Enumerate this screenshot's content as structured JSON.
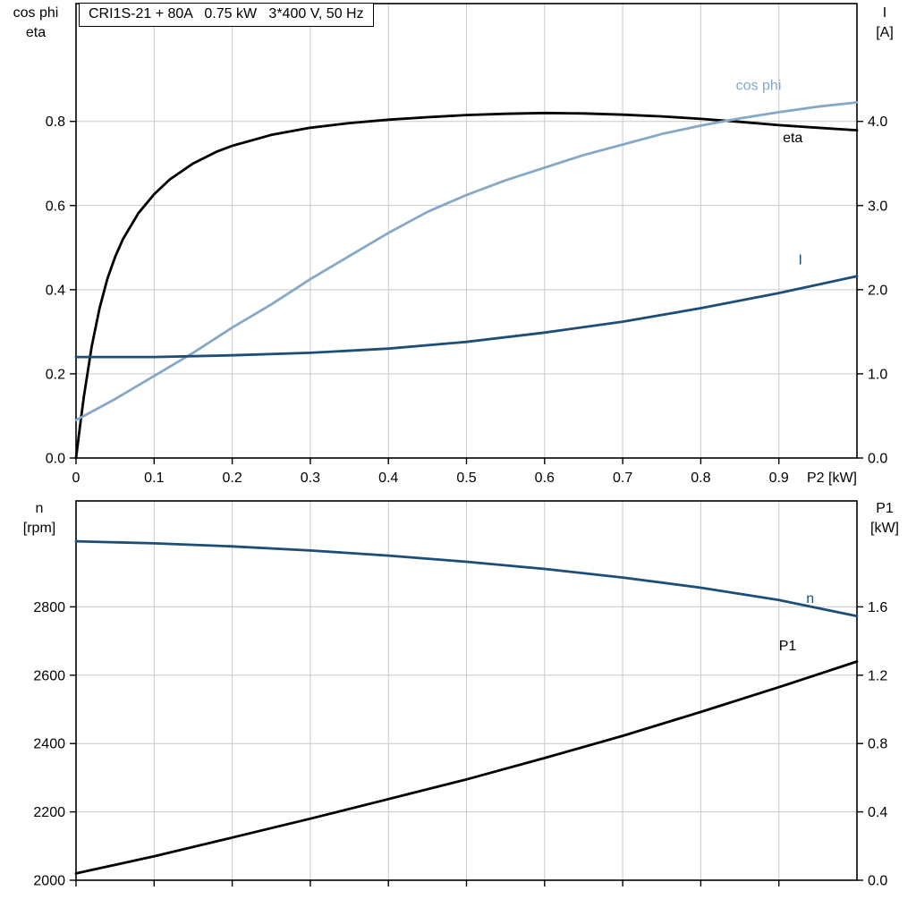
{
  "page": {
    "background": "#ffffff"
  },
  "colors": {
    "axis": "#000000",
    "grid": "#c9c9c9",
    "text": "#000000",
    "cos_phi_blue": "#85a8c7",
    "dark_blue": "#1d4e77",
    "curve_black": "#000000"
  },
  "chart_data": [
    {
      "type": "line",
      "title": "CRI1S-21 + 80A   0.75 kW   3*400 V, 50 Hz",
      "xlabel": "P2 [kW]",
      "ylabel_left_lines": [
        "cos phi",
        "eta"
      ],
      "ylabel_right_lines": [
        "I",
        "[A]"
      ],
      "xlim": [
        0,
        1.0
      ],
      "x_ticks": [
        0,
        0.1,
        0.2,
        0.3,
        0.4,
        0.5,
        0.6,
        0.7,
        0.8,
        0.9
      ],
      "x_tick_labels": [
        "0",
        "0.1",
        "0.2",
        "0.3",
        "0.4",
        "0.5",
        "0.6",
        "0.7",
        "0.8",
        "0.9"
      ],
      "ylim_left": [
        0,
        1.08
      ],
      "left_ticks": {
        "values": [
          0,
          0.2,
          0.4,
          0.6,
          0.8
        ],
        "labels": [
          "0.0",
          "0.2",
          "0.4",
          "0.6",
          "0.8"
        ]
      },
      "ylim_right": [
        0,
        5.4
      ],
      "right_ticks": {
        "values": [
          0,
          1,
          2,
          3,
          4
        ],
        "labels": [
          "0.0",
          "1.0",
          "2.0",
          "3.0",
          "4.0"
        ]
      },
      "grid": true,
      "legend_position": "inline-labels",
      "series": [
        {
          "name": "eta",
          "label": "eta",
          "axis": "left",
          "color": "#000000",
          "label_pos": [
            0.905,
            0.75
          ],
          "x": [
            0,
            0.005,
            0.01,
            0.02,
            0.03,
            0.04,
            0.05,
            0.06,
            0.08,
            0.1,
            0.12,
            0.15,
            0.18,
            0.2,
            0.25,
            0.3,
            0.35,
            0.4,
            0.45,
            0.5,
            0.55,
            0.6,
            0.65,
            0.7,
            0.75,
            0.8,
            0.85,
            0.9,
            0.95,
            1.0
          ],
          "y": [
            0,
            0.075,
            0.145,
            0.265,
            0.355,
            0.425,
            0.478,
            0.52,
            0.582,
            0.627,
            0.662,
            0.7,
            0.728,
            0.742,
            0.768,
            0.785,
            0.796,
            0.804,
            0.81,
            0.815,
            0.818,
            0.82,
            0.819,
            0.816,
            0.812,
            0.806,
            0.799,
            0.791,
            0.785,
            0.779
          ]
        },
        {
          "name": "cos phi",
          "label": "cos phi",
          "axis": "left",
          "color": "#85a8c7",
          "label_pos": [
            0.845,
            0.875
          ],
          "x": [
            0,
            0.05,
            0.1,
            0.15,
            0.2,
            0.25,
            0.3,
            0.35,
            0.4,
            0.45,
            0.5,
            0.55,
            0.6,
            0.65,
            0.7,
            0.75,
            0.8,
            0.85,
            0.9,
            0.95,
            1.0
          ],
          "y": [
            0.09,
            0.14,
            0.195,
            0.25,
            0.31,
            0.365,
            0.425,
            0.48,
            0.535,
            0.585,
            0.625,
            0.66,
            0.69,
            0.72,
            0.745,
            0.77,
            0.79,
            0.807,
            0.822,
            0.835,
            0.845
          ]
        },
        {
          "name": "I",
          "label": "I",
          "axis": "right",
          "color": "#1d4e77",
          "label_pos": [
            0.925,
            2.3
          ],
          "x": [
            0,
            0.1,
            0.2,
            0.3,
            0.4,
            0.5,
            0.6,
            0.7,
            0.8,
            0.9,
            1.0
          ],
          "y": [
            1.2,
            1.2,
            1.22,
            1.25,
            1.3,
            1.38,
            1.49,
            1.62,
            1.78,
            1.96,
            2.16
          ]
        }
      ]
    },
    {
      "type": "line",
      "title": "",
      "xlabel": "",
      "ylabel_left_lines": [
        "n",
        "[rpm]"
      ],
      "ylabel_right_lines": [
        "P1",
        "[kW]"
      ],
      "xlim": [
        0,
        1.0
      ],
      "x_ticks": [
        0,
        0.1,
        0.2,
        0.3,
        0.4,
        0.5,
        0.6,
        0.7,
        0.8,
        0.9
      ],
      "x_tick_labels": [],
      "ylim_left": [
        2000,
        3110
      ],
      "left_ticks": {
        "values": [
          2000,
          2200,
          2400,
          2600,
          2800
        ],
        "labels": [
          "2000",
          "2200",
          "2400",
          "2600",
          "2800"
        ]
      },
      "ylim_right": [
        0,
        2.22
      ],
      "right_ticks": {
        "values": [
          0,
          0.4,
          0.8,
          1.2,
          1.6
        ],
        "labels": [
          "0.0",
          "0.4",
          "0.8",
          "1.2",
          "1.6"
        ]
      },
      "grid": true,
      "legend_position": "inline-labels",
      "series": [
        {
          "name": "n",
          "label": "n",
          "axis": "left",
          "color": "#1d4e77",
          "label_pos": [
            0.935,
            2812
          ],
          "x": [
            0,
            0.1,
            0.2,
            0.3,
            0.4,
            0.5,
            0.6,
            0.7,
            0.8,
            0.9,
            1.0
          ],
          "y": [
            2992,
            2986,
            2977,
            2965,
            2950,
            2932,
            2911,
            2886,
            2856,
            2820,
            2773
          ]
        },
        {
          "name": "P1",
          "label": "P1",
          "axis": "right",
          "color": "#000000",
          "label_pos": [
            0.9,
            1.345
          ],
          "x": [
            0,
            0.1,
            0.2,
            0.3,
            0.4,
            0.5,
            0.6,
            0.7,
            0.8,
            0.9,
            1.0
          ],
          "y": [
            0.04,
            0.14,
            0.25,
            0.36,
            0.475,
            0.59,
            0.715,
            0.845,
            0.985,
            1.13,
            1.28
          ]
        }
      ]
    }
  ]
}
